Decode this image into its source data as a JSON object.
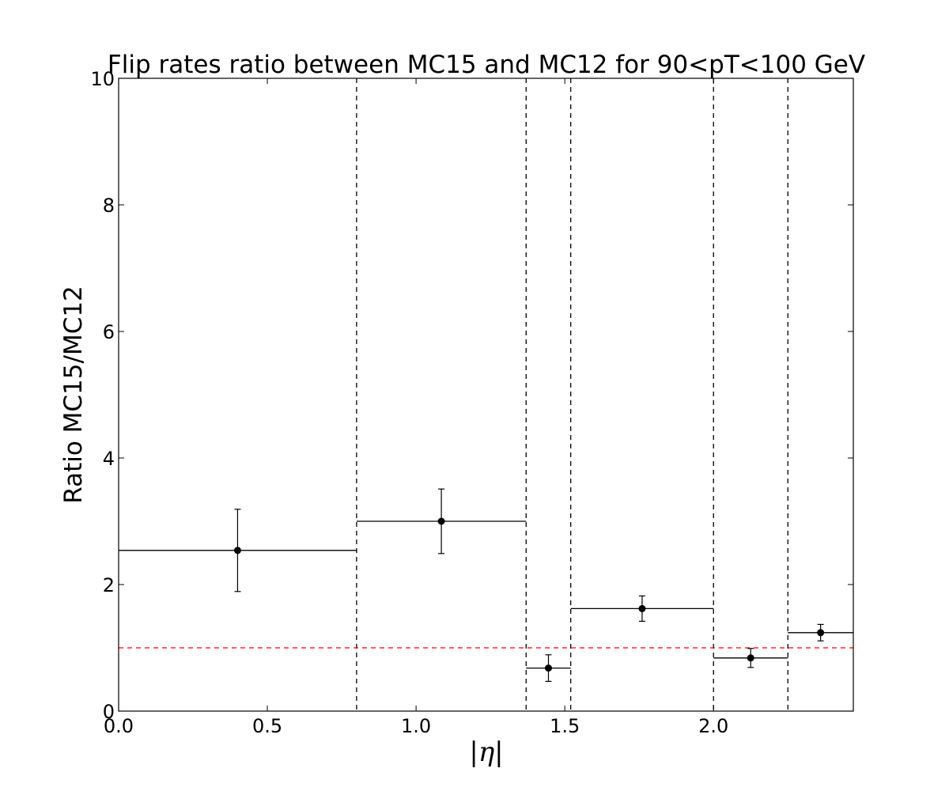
{
  "chart_data": {
    "type": "scatter",
    "title": "Flip rates ratio between MC15 and MC12 for 90<pT<100 GeV",
    "xlabel": "|η|",
    "ylabel": "Ratio MC15/MC12",
    "xlim": [
      0.0,
      2.47
    ],
    "ylim": [
      0,
      10
    ],
    "x_ticks": [
      "0.0",
      "0.5",
      "1.0",
      "1.5",
      "2.0"
    ],
    "x_tick_values": [
      0.0,
      0.5,
      1.0,
      1.5,
      2.0
    ],
    "y_ticks": [
      "0",
      "2",
      "4",
      "6",
      "8",
      "10"
    ],
    "y_tick_values": [
      0,
      2,
      4,
      6,
      8,
      10
    ],
    "grid": false,
    "bin_edges": [
      0.0,
      0.8,
      1.37,
      1.52,
      2.0,
      2.25,
      2.47
    ],
    "series": [
      {
        "points": [
          {
            "x": 0.4,
            "y": 2.54,
            "x_low": 0.0,
            "x_high": 0.8,
            "y_err": 0.65
          },
          {
            "x": 1.085,
            "y": 3.0,
            "x_low": 0.8,
            "x_high": 1.37,
            "y_err": 0.51
          },
          {
            "x": 1.445,
            "y": 0.68,
            "x_low": 1.37,
            "x_high": 1.52,
            "y_err": 0.21
          },
          {
            "x": 1.76,
            "y": 1.62,
            "x_low": 1.52,
            "x_high": 2.0,
            "y_err": 0.2
          },
          {
            "x": 2.125,
            "y": 0.84,
            "x_low": 2.0,
            "x_high": 2.25,
            "y_err": 0.15
          },
          {
            "x": 2.36,
            "y": 1.24,
            "x_low": 2.25,
            "x_high": 2.47,
            "y_err": 0.13
          }
        ]
      }
    ],
    "reference_line": {
      "y": 1.0,
      "color": "#ff0000",
      "style": "dashed"
    },
    "bin_edge_line_color": "#000000",
    "marker_color": "#000000"
  }
}
